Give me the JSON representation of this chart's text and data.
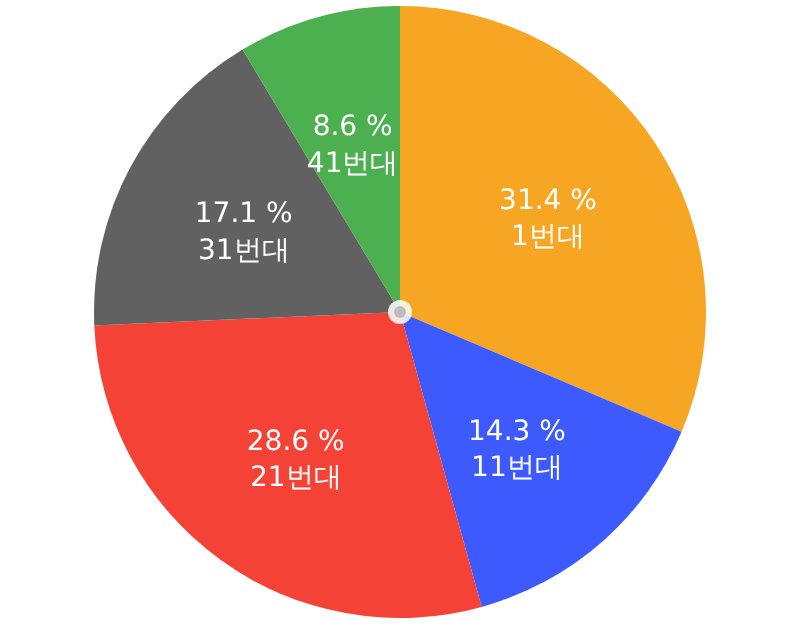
{
  "chart_data": {
    "type": "pie",
    "categories": [
      "1번대",
      "11번대",
      "21번대",
      "31번대",
      "41번대"
    ],
    "values": [
      31.4,
      14.3,
      28.6,
      17.1,
      8.6
    ],
    "value_labels": [
      "31.4 %",
      "14.3 %",
      "28.6 %",
      "17.1 %",
      "8.6 %"
    ],
    "colors": [
      "#f6a623",
      "#3d5afe",
      "#f44336",
      "#616161",
      "#4caf50"
    ]
  }
}
